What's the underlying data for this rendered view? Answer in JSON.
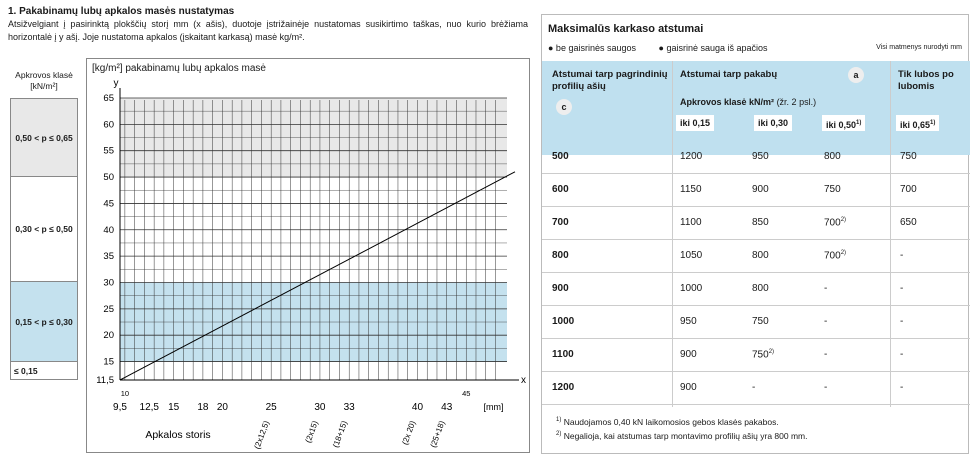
{
  "left": {
    "title": "1. Pakabinamų lubų apkalos masės nustatymas",
    "description": "Atsižvelgiant į pasirinktą plokščių storį mm (x ašis), duotoje įstrižainėje nustatomas susikirtimo taškas, nuo kurio brėžiama horizontalė į y ašį. Joje nustatoma apkalos (įskaitant karkasą) masė kg/m².",
    "class_header": "Apkrovos klasė [kN/m²]",
    "classes": [
      "0,50 < p ≤ 0,65",
      "0,30 < p ≤ 0,50",
      "0,15 < p ≤ 0,30",
      "≤ 0,15"
    ]
  },
  "chart_data": {
    "type": "line",
    "title": "[kg/m²] pakabinamų lubų apkalos masė",
    "xlabel": "Apkalos storis",
    "x_unit": "[mm]",
    "y_axis_name": "y",
    "x_axis_name": "x",
    "x_ticks": [
      "9,5",
      "12,5",
      "15",
      "18",
      "20",
      "25",
      "30",
      "33",
      "40",
      "43"
    ],
    "x_small_ticks": [
      "10",
      "45"
    ],
    "x_rotated_labels": [
      "(2x12,5)",
      "(2x15)",
      "(18+15)",
      "(2x 20)",
      "(25+18)"
    ],
    "y_ticks": [
      "11,5",
      "15",
      "20",
      "25",
      "30",
      "35",
      "40",
      "45",
      "50",
      "55",
      "60",
      "65"
    ],
    "ylim": [
      11.5,
      65
    ],
    "xlim": [
      9.5,
      50
    ],
    "series": [
      {
        "x": [
          9.5,
          50
        ],
        "y": [
          11.5,
          51
        ]
      }
    ],
    "bands": [
      {
        "from": 11.5,
        "to": 15,
        "color": "#ffffff"
      },
      {
        "from": 15,
        "to": 30,
        "color": "#c4e1ee"
      },
      {
        "from": 30,
        "to": 50,
        "color": "#ffffff"
      },
      {
        "from": 50,
        "to": 65,
        "color": "#e8e8e8"
      }
    ]
  },
  "right": {
    "title": "Maksimalūs karkaso atstumai",
    "legend": [
      "● be gaisrinės saugos",
      "● gaisrinė sauga iš apačios"
    ],
    "note": "Visi matmenys nurodyti mm",
    "col1_header": "Atstumai tarp pagrindinių profilių ašių",
    "col1_badge": "c",
    "col2_header": "Atstumai tarp pakabų",
    "col2_badge": "a",
    "col2_sub": "Apkrovos klasė kN/m²",
    "col2_sub_note": "(žr. 2 psl.)",
    "col3_header": "Tik lubos po lubomis",
    "iki": [
      "iki 0,15",
      "iki 0,30",
      "iki 0,50",
      "iki 0,65"
    ],
    "rows": [
      [
        "500",
        "1200",
        "950",
        "800",
        "750"
      ],
      [
        "600",
        "1150",
        "900",
        "750",
        "700"
      ],
      [
        "700",
        "1100",
        "850",
        "700",
        "650"
      ],
      [
        "800",
        "1050",
        "800",
        "700",
        "-"
      ],
      [
        "900",
        "1000",
        "800",
        "-",
        "-"
      ],
      [
        "1000",
        "950",
        "750",
        "-",
        "-"
      ],
      [
        "1100",
        "900",
        "750",
        "-",
        "-"
      ],
      [
        "1200",
        "900",
        "-",
        "-",
        "-"
      ]
    ],
    "footnotes": [
      "Naudojamos 0,40 kN laikomosios gebos klasės pakabos.",
      "Negalioja, kai atstumas tarp montavimo profilių ašių yra 800 mm."
    ]
  }
}
